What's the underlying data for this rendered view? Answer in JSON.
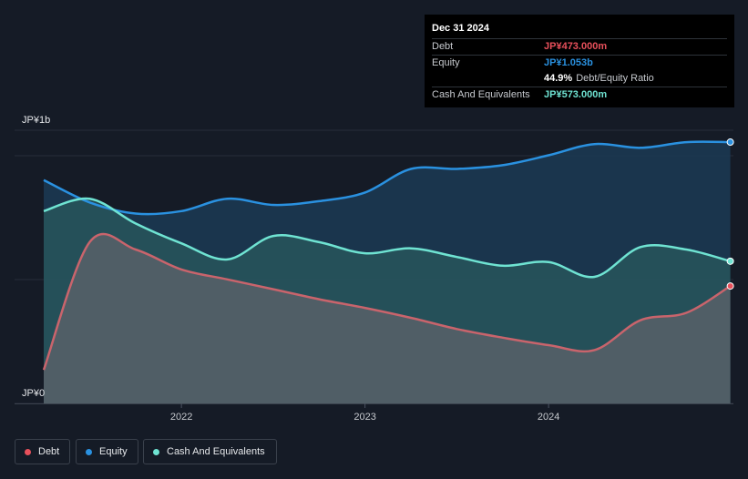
{
  "tooltip": {
    "date": "Dec 31 2024",
    "debt_label": "Debt",
    "debt_value": "JP¥473.000m",
    "equity_label": "Equity",
    "equity_value": "JP¥1.053b",
    "ratio_value": "44.9%",
    "ratio_label": "Debt/Equity Ratio",
    "cash_label": "Cash And Equivalents",
    "cash_value": "JP¥573.000m"
  },
  "legend": {
    "debt": "Debt",
    "equity": "Equity",
    "cash": "Cash And Equivalents"
  },
  "colors": {
    "debt": "#e8505b",
    "equity": "#2a91e0",
    "cash": "#6fe3d2",
    "background": "#151b26"
  },
  "chart_data": {
    "type": "area",
    "y_unit": "JP¥ millions",
    "ylim": [
      0,
      1100
    ],
    "y_ticks": [
      {
        "value": 0,
        "label": "JP¥0"
      },
      {
        "value": 1000,
        "label": "JP¥1b"
      }
    ],
    "x_ticks": [
      {
        "value": 2022.0,
        "label": "2022"
      },
      {
        "value": 2023.0,
        "label": "2023"
      },
      {
        "value": 2024.0,
        "label": "2024"
      }
    ],
    "xlim": [
      2021.0,
      2024.99
    ],
    "series": [
      {
        "name": "Equity",
        "key": "equity",
        "points": [
          [
            2021.25,
            900
          ],
          [
            2021.5,
            810
          ],
          [
            2021.75,
            765
          ],
          [
            2022.0,
            775
          ],
          [
            2022.25,
            825
          ],
          [
            2022.5,
            800
          ],
          [
            2022.75,
            815
          ],
          [
            2023.0,
            850
          ],
          [
            2023.25,
            945
          ],
          [
            2023.5,
            945
          ],
          [
            2023.75,
            960
          ],
          [
            2024.0,
            1000
          ],
          [
            2024.25,
            1045
          ],
          [
            2024.5,
            1030
          ],
          [
            2024.75,
            1053
          ],
          [
            2024.99,
            1053
          ]
        ]
      },
      {
        "name": "Cash And Equivalents",
        "key": "cash",
        "points": [
          [
            2021.25,
            775
          ],
          [
            2021.5,
            825
          ],
          [
            2021.75,
            725
          ],
          [
            2022.0,
            645
          ],
          [
            2022.25,
            580
          ],
          [
            2022.5,
            675
          ],
          [
            2022.75,
            650
          ],
          [
            2023.0,
            605
          ],
          [
            2023.25,
            625
          ],
          [
            2023.5,
            590
          ],
          [
            2023.75,
            555
          ],
          [
            2024.0,
            570
          ],
          [
            2024.25,
            510
          ],
          [
            2024.5,
            630
          ],
          [
            2024.75,
            620
          ],
          [
            2024.99,
            573
          ]
        ]
      },
      {
        "name": "Debt",
        "key": "debt",
        "points": [
          [
            2021.25,
            135
          ],
          [
            2021.5,
            650
          ],
          [
            2021.75,
            620
          ],
          [
            2022.0,
            540
          ],
          [
            2022.25,
            500
          ],
          [
            2022.5,
            460
          ],
          [
            2022.75,
            420
          ],
          [
            2023.0,
            385
          ],
          [
            2023.25,
            345
          ],
          [
            2023.5,
            300
          ],
          [
            2023.75,
            265
          ],
          [
            2024.0,
            235
          ],
          [
            2024.25,
            215
          ],
          [
            2024.5,
            335
          ],
          [
            2024.75,
            365
          ],
          [
            2024.99,
            473
          ]
        ]
      }
    ]
  }
}
